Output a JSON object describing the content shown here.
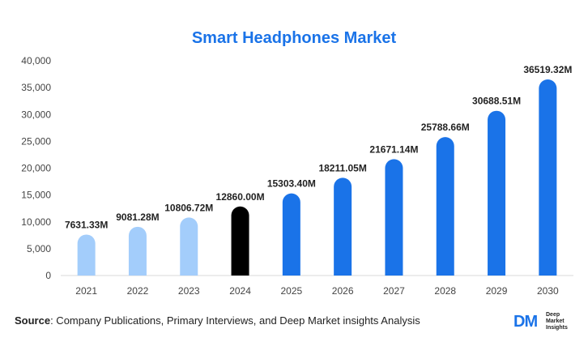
{
  "chart_data": {
    "type": "bar",
    "title": "Smart Headphones Market",
    "categories": [
      "2021",
      "2022",
      "2023",
      "2024",
      "2025",
      "2026",
      "2027",
      "2028",
      "2029",
      "2030"
    ],
    "values": [
      7631.33,
      9081.28,
      10806.72,
      12860.0,
      15303.4,
      18211.05,
      21671.14,
      25788.66,
      30688.51,
      36519.32
    ],
    "data_labels": [
      "7631.33M",
      "9081.28M",
      "10806.72M",
      "12860.00M",
      "15303.40M",
      "18211.05M",
      "21671.14M",
      "25788.66M",
      "30688.51M",
      "36519.32M"
    ],
    "ylim": [
      0,
      40000
    ],
    "yticks": [
      0,
      5000,
      10000,
      15000,
      20000,
      25000,
      30000,
      35000,
      40000
    ],
    "ytick_labels": [
      "0",
      "5,000",
      "10,000",
      "15,000",
      "20,000",
      "25,000",
      "30,000",
      "35,000",
      "40,000"
    ],
    "bar_colors": [
      "#a3cdfb",
      "#a3cdfb",
      "#a3cdfb",
      "#000000",
      "#1a73e8",
      "#1a73e8",
      "#1a73e8",
      "#1a73e8",
      "#1a73e8",
      "#1a73e8"
    ],
    "grid": false,
    "legend": "none"
  },
  "source": {
    "label": "Source",
    "text": ": Company Publications, Primary Interviews, and Deep Market insights Analysis"
  },
  "logo": {
    "mark": "DM",
    "line1": "Deep",
    "line2": "Market",
    "line3": "Insights"
  }
}
